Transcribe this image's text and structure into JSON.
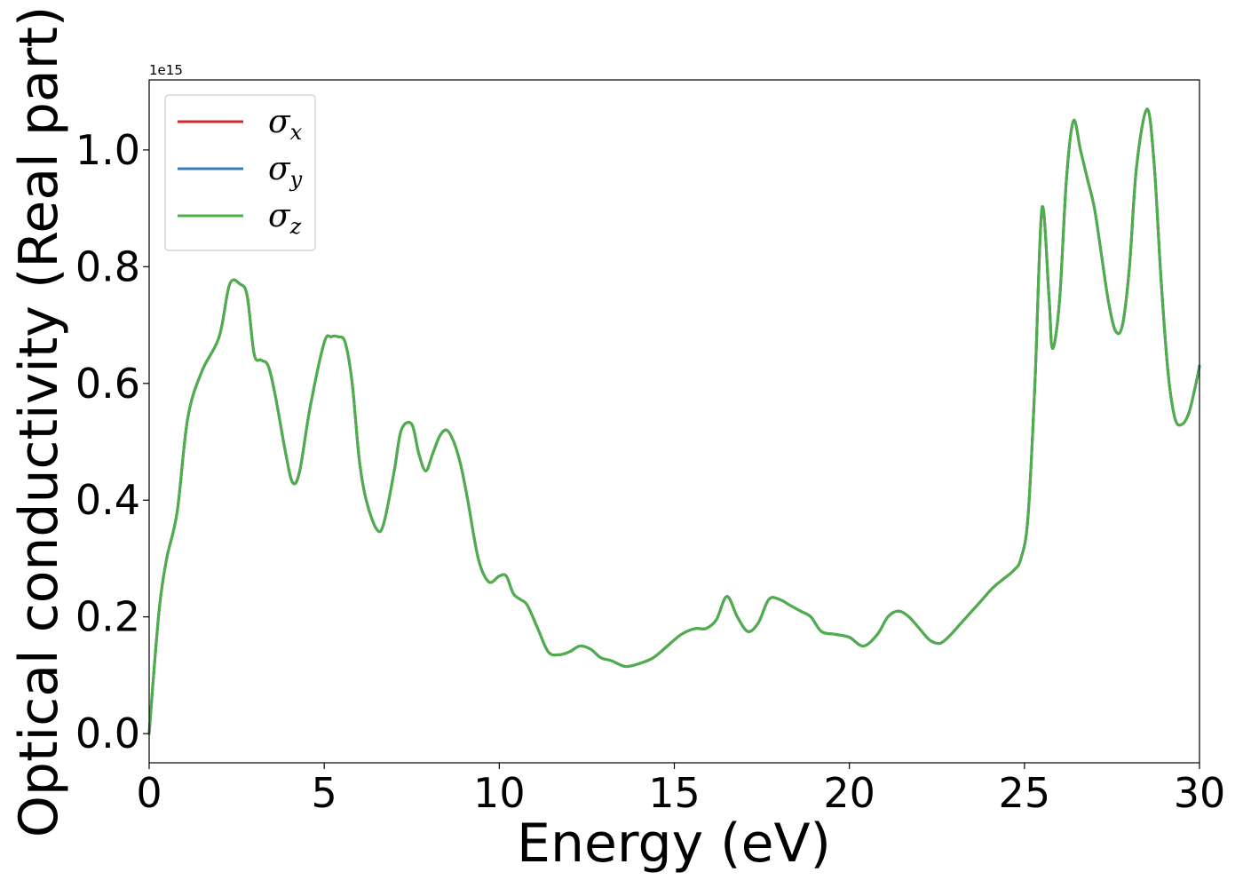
{
  "chart_data": {
    "type": "line",
    "title": "",
    "xlabel": "Energy (eV)",
    "ylabel": "Optical conductivity (Real part)",
    "y_offset_label": "1e15",
    "xlim": [
      0,
      30
    ],
    "ylim": [
      -0.05,
      1.12
    ],
    "x_ticks": [
      0,
      5,
      10,
      15,
      20,
      25,
      30
    ],
    "y_ticks": [
      0.0,
      0.2,
      0.4,
      0.6,
      0.8,
      1.0
    ],
    "x_tick_labels": [
      "0",
      "5",
      "10",
      "15",
      "20",
      "25",
      "30"
    ],
    "y_tick_labels": [
      "0.0",
      "0.2",
      "0.4",
      "0.6",
      "0.8",
      "1.0"
    ],
    "grid": false,
    "legend_position": "top-left",
    "x": [
      0,
      0.1,
      0.3,
      0.5,
      0.8,
      1.1,
      1.5,
      2.0,
      2.3,
      2.6,
      2.8,
      3.0,
      3.2,
      3.4,
      3.6,
      3.9,
      4.1,
      4.3,
      4.6,
      5.0,
      5.2,
      5.4,
      5.6,
      5.8,
      6.0,
      6.2,
      6.5,
      6.7,
      7.0,
      7.2,
      7.5,
      7.7,
      7.9,
      8.1,
      8.3,
      8.5,
      8.7,
      8.9,
      9.1,
      9.4,
      9.7,
      10.0,
      10.2,
      10.4,
      10.6,
      10.8,
      11.1,
      11.4,
      11.7,
      12.0,
      12.3,
      12.6,
      12.9,
      13.2,
      13.6,
      14.0,
      14.4,
      14.8,
      15.2,
      15.6,
      15.9,
      16.2,
      16.5,
      16.8,
      17.1,
      17.4,
      17.7,
      18.0,
      18.3,
      18.6,
      18.9,
      19.2,
      19.6,
      20.0,
      20.4,
      20.8,
      21.1,
      21.4,
      21.7,
      22.0,
      22.3,
      22.6,
      22.9,
      23.2,
      23.5,
      23.8,
      24.1,
      24.4,
      24.7,
      24.9,
      25.1,
      25.3,
      25.5,
      25.7,
      25.8,
      26.0,
      26.2,
      26.4,
      26.6,
      26.8,
      27.0,
      27.2,
      27.4,
      27.6,
      27.8,
      28.0,
      28.2,
      28.5,
      28.7,
      28.9,
      29.1,
      29.3,
      29.5,
      29.7,
      29.9,
      30.0
    ],
    "series": [
      {
        "name": "σx",
        "color": "#d62728",
        "values": [
          0.0,
          0.08,
          0.22,
          0.3,
          0.38,
          0.54,
          0.62,
          0.68,
          0.77,
          0.77,
          0.75,
          0.65,
          0.64,
          0.63,
          0.58,
          0.48,
          0.43,
          0.45,
          0.56,
          0.67,
          0.68,
          0.68,
          0.67,
          0.6,
          0.47,
          0.4,
          0.35,
          0.36,
          0.45,
          0.52,
          0.53,
          0.48,
          0.45,
          0.48,
          0.51,
          0.52,
          0.5,
          0.46,
          0.4,
          0.3,
          0.26,
          0.27,
          0.27,
          0.24,
          0.23,
          0.22,
          0.18,
          0.14,
          0.135,
          0.14,
          0.15,
          0.145,
          0.13,
          0.125,
          0.115,
          0.12,
          0.13,
          0.15,
          0.17,
          0.18,
          0.18,
          0.195,
          0.235,
          0.2,
          0.175,
          0.19,
          0.23,
          0.23,
          0.22,
          0.21,
          0.2,
          0.175,
          0.17,
          0.165,
          0.15,
          0.17,
          0.2,
          0.21,
          0.2,
          0.18,
          0.16,
          0.155,
          0.17,
          0.19,
          0.21,
          0.23,
          0.25,
          0.265,
          0.28,
          0.3,
          0.37,
          0.6,
          0.9,
          0.75,
          0.66,
          0.74,
          0.95,
          1.05,
          1.0,
          0.95,
          0.9,
          0.82,
          0.74,
          0.69,
          0.7,
          0.8,
          0.97,
          1.07,
          0.98,
          0.78,
          0.62,
          0.54,
          0.53,
          0.55,
          0.6,
          0.63
        ]
      },
      {
        "name": "σy",
        "color": "#377eb8",
        "values": [
          0.0,
          0.08,
          0.22,
          0.3,
          0.38,
          0.54,
          0.62,
          0.68,
          0.77,
          0.77,
          0.75,
          0.65,
          0.64,
          0.63,
          0.58,
          0.48,
          0.43,
          0.45,
          0.56,
          0.67,
          0.68,
          0.68,
          0.67,
          0.6,
          0.47,
          0.4,
          0.35,
          0.36,
          0.45,
          0.52,
          0.53,
          0.48,
          0.45,
          0.48,
          0.51,
          0.52,
          0.5,
          0.46,
          0.4,
          0.3,
          0.26,
          0.27,
          0.27,
          0.24,
          0.23,
          0.22,
          0.18,
          0.14,
          0.135,
          0.14,
          0.15,
          0.145,
          0.13,
          0.125,
          0.115,
          0.12,
          0.13,
          0.15,
          0.17,
          0.18,
          0.18,
          0.195,
          0.235,
          0.2,
          0.175,
          0.19,
          0.23,
          0.23,
          0.22,
          0.21,
          0.2,
          0.175,
          0.17,
          0.165,
          0.15,
          0.17,
          0.2,
          0.21,
          0.2,
          0.18,
          0.16,
          0.155,
          0.17,
          0.19,
          0.21,
          0.23,
          0.25,
          0.265,
          0.28,
          0.3,
          0.37,
          0.6,
          0.9,
          0.75,
          0.66,
          0.74,
          0.95,
          1.05,
          1.0,
          0.95,
          0.9,
          0.82,
          0.74,
          0.69,
          0.7,
          0.8,
          0.97,
          1.07,
          0.98,
          0.78,
          0.62,
          0.54,
          0.53,
          0.55,
          0.6,
          0.63
        ]
      },
      {
        "name": "σz",
        "color": "#4daf4a",
        "values": [
          0.0,
          0.08,
          0.22,
          0.3,
          0.38,
          0.54,
          0.62,
          0.68,
          0.77,
          0.77,
          0.75,
          0.65,
          0.64,
          0.63,
          0.58,
          0.48,
          0.43,
          0.45,
          0.56,
          0.67,
          0.68,
          0.68,
          0.67,
          0.6,
          0.47,
          0.4,
          0.35,
          0.36,
          0.45,
          0.52,
          0.53,
          0.48,
          0.45,
          0.48,
          0.51,
          0.52,
          0.5,
          0.46,
          0.4,
          0.3,
          0.26,
          0.27,
          0.27,
          0.24,
          0.23,
          0.22,
          0.18,
          0.14,
          0.135,
          0.14,
          0.15,
          0.145,
          0.13,
          0.125,
          0.115,
          0.12,
          0.13,
          0.15,
          0.17,
          0.18,
          0.18,
          0.195,
          0.235,
          0.2,
          0.175,
          0.19,
          0.23,
          0.23,
          0.22,
          0.21,
          0.2,
          0.175,
          0.17,
          0.165,
          0.15,
          0.17,
          0.2,
          0.21,
          0.2,
          0.18,
          0.16,
          0.155,
          0.17,
          0.19,
          0.21,
          0.23,
          0.25,
          0.265,
          0.28,
          0.3,
          0.37,
          0.6,
          0.9,
          0.75,
          0.66,
          0.74,
          0.95,
          1.05,
          1.0,
          0.95,
          0.9,
          0.82,
          0.74,
          0.69,
          0.7,
          0.8,
          0.97,
          1.07,
          0.98,
          0.78,
          0.62,
          0.54,
          0.53,
          0.55,
          0.6,
          0.63
        ]
      }
    ],
    "legend": [
      {
        "symbol": "σ",
        "sub": "x",
        "color": "#d62728"
      },
      {
        "symbol": "σ",
        "sub": "y",
        "color": "#377eb8"
      },
      {
        "symbol": "σ",
        "sub": "z",
        "color": "#4daf4a"
      }
    ]
  }
}
